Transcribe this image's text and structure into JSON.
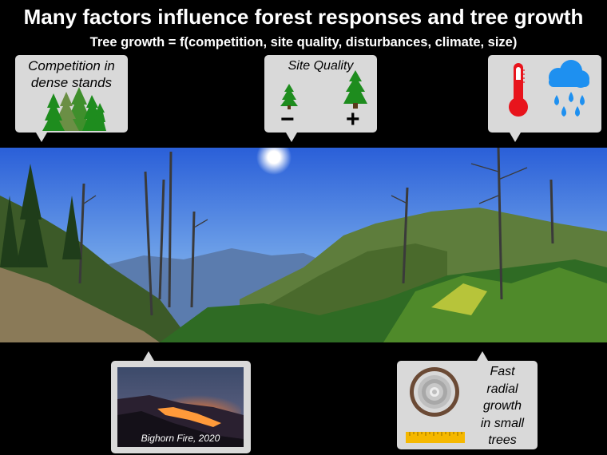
{
  "title": "Many factors influence forest responses and tree growth",
  "subtitle": "Tree growth = f(competition, site quality, disturbances, climate, size)",
  "callouts": {
    "competition": {
      "text_line1": "Competition in",
      "text_line2": "dense stands",
      "icon": "tree-cluster-icon"
    },
    "site_quality": {
      "text": "Site Quality",
      "minus": "−",
      "plus": "+",
      "icons": [
        "small-tree-icon",
        "large-tree-icon"
      ]
    },
    "climate": {
      "icons": [
        "thermometer-icon",
        "rain-cloud-icon"
      ]
    },
    "disturbance": {
      "caption": "Bighorn Fire, 2020",
      "icon": "fire-photo"
    },
    "size": {
      "line1": "Fast",
      "line2": "radial",
      "line3": "growth",
      "line4": "in small",
      "line5": "trees",
      "icons": [
        "tree-ring-icon",
        "ruler-icon"
      ]
    }
  },
  "colors": {
    "callout_bg": "#d9d9d9",
    "tree_green": "#2e8b2e",
    "thermometer_red": "#e8141c",
    "rain_blue": "#1e90f0",
    "ruler_yellow": "#f5b800"
  }
}
